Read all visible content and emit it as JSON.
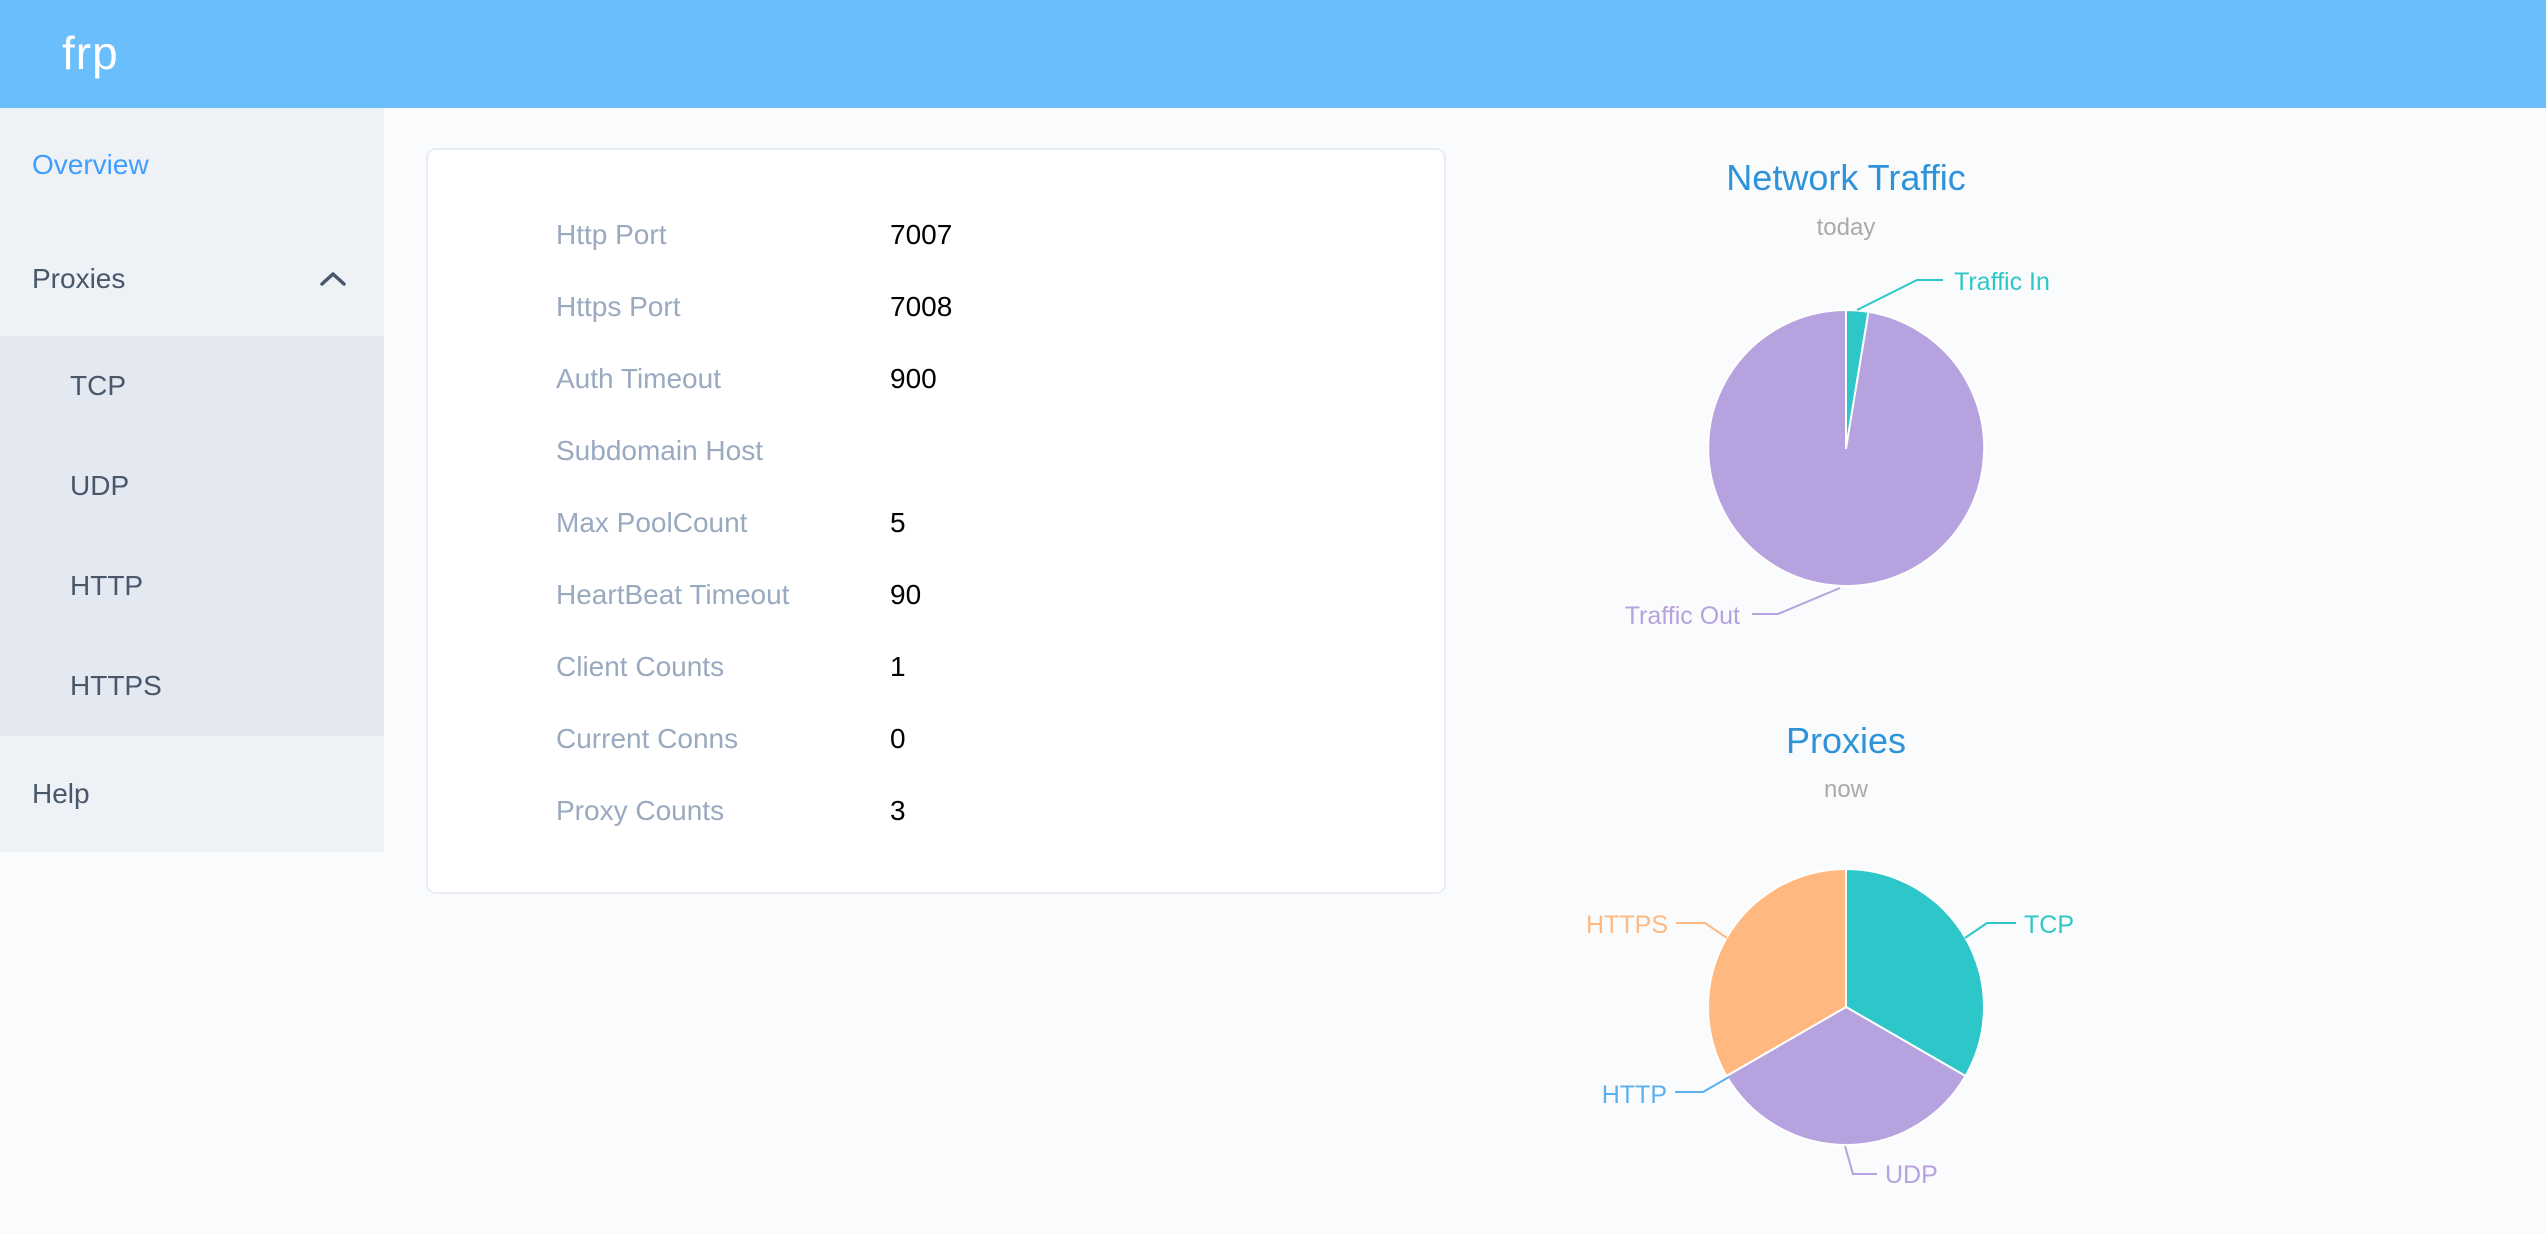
{
  "header": {
    "logo": "frp"
  },
  "sidebar": {
    "overview_label": "Overview",
    "proxies_label": "Proxies",
    "proxies_children": [
      "TCP",
      "UDP",
      "HTTP",
      "HTTPS"
    ],
    "help_label": "Help"
  },
  "overview_card": {
    "rows": [
      {
        "label": "Http Port",
        "value": "7007"
      },
      {
        "label": "Https Port",
        "value": "7008"
      },
      {
        "label": "Auth Timeout",
        "value": "900"
      },
      {
        "label": "Subdomain Host",
        "value": ""
      },
      {
        "label": "Max PoolCount",
        "value": "5"
      },
      {
        "label": "HeartBeat Timeout",
        "value": "90"
      },
      {
        "label": "Client Counts",
        "value": "1"
      },
      {
        "label": "Current Conns",
        "value": "0"
      },
      {
        "label": "Proxy Counts",
        "value": "3"
      }
    ]
  },
  "chart_data": [
    {
      "type": "pie",
      "title": "Network Traffic",
      "subtitle": "today",
      "legend_position": "none",
      "labels": "outside",
      "series": [
        {
          "name": "Traffic In",
          "value": 2.6,
          "color": "#2ec7c9"
        },
        {
          "name": "Traffic Out",
          "value": 97.4,
          "color": "#b6a2de"
        }
      ]
    },
    {
      "type": "pie",
      "title": "Proxies",
      "subtitle": "now",
      "legend_position": "none",
      "labels": "outside",
      "series": [
        {
          "name": "TCP",
          "value": 1,
          "color": "#2ec7c9"
        },
        {
          "name": "UDP",
          "value": 1,
          "color": "#b6a2de"
        },
        {
          "name": "HTTP",
          "value": 0,
          "color": "#5ab1ef"
        },
        {
          "name": "HTTPS",
          "value": 1,
          "color": "#ffb980"
        }
      ]
    }
  ],
  "colors": {
    "header_bg": "#6abefb",
    "logo": "#ffffff",
    "sidebar_bg": "#eef1f6",
    "submenu_bg": "#e4e8f1",
    "menu_text": "#48576a",
    "menu_active": "#409eff",
    "main_bg": "#fafbfc",
    "card_bg": "#ffffff",
    "card_border": "#e8ecf4",
    "label_gray": "#99a9bf",
    "value_black": "#000000",
    "chart_title": "#2e93d8",
    "chart_subtitle": "#aaaaaa"
  }
}
